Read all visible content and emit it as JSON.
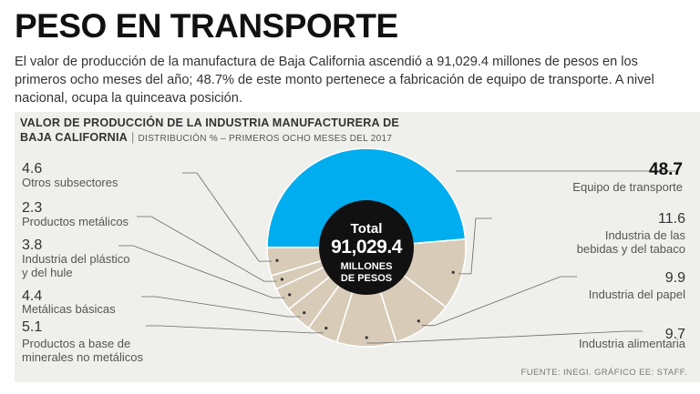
{
  "headline": "PESO EN TRANSPORTE",
  "lead": "El valor de producción de la manufactura de Baja California ascendió a 91,029.4 millones de pesos en los primeros ocho meses del año; 48.7% de este monto pertenece a fabricación de equipo de transporte. A nivel nacional, ocupa la quinceava posición.",
  "chart_header": {
    "line1": "VALOR DE PRODUCCIÓN DE LA INDUSTRIA MANUFACTURERA DE",
    "line2": "BAJA CALIFORNIA",
    "subtitle": "DISTRIBUCIÓN % – PRIMEROS OCHO MESES DEL 2017"
  },
  "source": "FUENTE: INEGI. GRÁFICO EE: STAFF.",
  "center": {
    "label": "Total",
    "value": "91,029.4",
    "unit_line1": "MILLONES",
    "unit_line2": "DE PESOS"
  },
  "colors": {
    "highlight": "#00aeef",
    "other": "#d8cbb8",
    "center": "#111111",
    "frame": "#efefec"
  },
  "chart_data": {
    "type": "pie",
    "title": "VALOR DE PRODUCCIÓN DE LA INDUSTRIA MANUFACTURERA DE BAJA CALIFORNIA",
    "subtitle": "DISTRIBUCIÓN % – PRIMEROS OCHO MESES DEL 2017",
    "unit": "%",
    "slices": [
      {
        "label": "Equipo de transporte",
        "value": 48.7,
        "value_text": "48.7",
        "lines": [
          "Equipo de transporte"
        ],
        "highlight": true
      },
      {
        "label": "Industria de las bebidas y del tabaco",
        "value": 11.6,
        "value_text": "11.6",
        "lines": [
          "Industria de las",
          "bebidas y del tabaco"
        ]
      },
      {
        "label": "Industria del papel",
        "value": 9.9,
        "value_text": "9.9",
        "lines": [
          "Industria del papel"
        ]
      },
      {
        "label": "Industria alimentaria",
        "value": 9.7,
        "value_text": "9.7",
        "lines": [
          "Industria alimentaria"
        ]
      },
      {
        "label": "Productos a base de minerales no metálicos",
        "value": 5.1,
        "value_text": "5.1",
        "lines": [
          "Productos a base de",
          "minerales no metálicos"
        ]
      },
      {
        "label": "Metálicas básicas",
        "value": 4.4,
        "value_text": "4.4",
        "lines": [
          "Metálicas básicas"
        ]
      },
      {
        "label": "Industria del plástico y del hule",
        "value": 3.8,
        "value_text": "3.8",
        "lines": [
          "Industria del plástico",
          "y del hule"
        ]
      },
      {
        "label": "Productos metálicos",
        "value": 2.3,
        "value_text": "2.3",
        "lines": [
          "Productos metálicos"
        ]
      },
      {
        "label": "Otros subsectores",
        "value": 4.6,
        "value_text": "4.6",
        "lines": [
          "Otros subsectores"
        ]
      }
    ]
  }
}
